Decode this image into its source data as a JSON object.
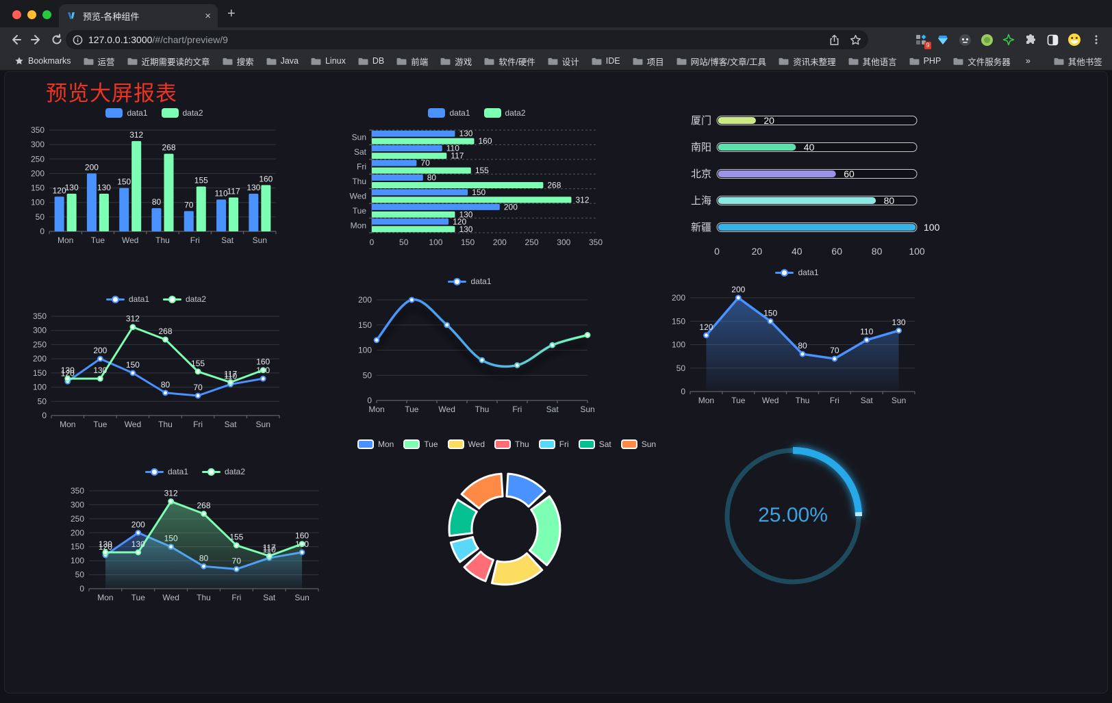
{
  "browser": {
    "tab": {
      "title": "预览-各种组件",
      "close_glyph": "×",
      "new_tab_glyph": "+"
    },
    "url": {
      "host": "127.0.0.1:3000",
      "path": "/#/chart/preview/9"
    },
    "extensions_badge": "9",
    "bookmarks_root": "Bookmarks",
    "bookmarks": [
      "运营",
      "近期需要读的文章",
      "搜索",
      "Java",
      "Linux",
      "DB",
      "前端",
      "游戏",
      "软件/硬件",
      "设计",
      "IDE",
      "项目",
      "网站/博客/文章/工具",
      "资讯未整理",
      "其他语言",
      "PHP",
      "文件服务器"
    ],
    "bookmarks_overflow": "»",
    "other_bookmarks": "其他书签"
  },
  "page": {
    "title": "预览大屏报表",
    "title_color": "#ee3420",
    "background": "#16171e"
  },
  "charts": [
    {
      "name": "grouped-bar-chart",
      "chart_data": {
        "type": "bar",
        "categories": [
          "Mon",
          "Tue",
          "Wed",
          "Thu",
          "Fri",
          "Sat",
          "Sun"
        ],
        "series": [
          {
            "name": "data1",
            "color": "#4992ff",
            "values": [
              120,
              200,
              150,
              80,
              70,
              110,
              130
            ]
          },
          {
            "name": "data2",
            "color": "#7cffb2",
            "values": [
              130,
              130,
              312,
              268,
              155,
              117,
              160
            ]
          }
        ],
        "ylim": [
          0,
          350
        ],
        "ystep": 50,
        "grid": true,
        "legend_position": "top",
        "labels_shown": true
      }
    },
    {
      "name": "horizontal-bar-chart",
      "chart_data": {
        "type": "bar",
        "orientation": "horizontal",
        "categories": [
          "Mon",
          "Tue",
          "Wed",
          "Thu",
          "Fri",
          "Sat",
          "Sun"
        ],
        "category_display_order": "Sun at top, Mon at bottom",
        "series": [
          {
            "name": "data1",
            "color": "#4992ff",
            "values": [
              120,
              200,
              150,
              80,
              70,
              110,
              130
            ]
          },
          {
            "name": "data2",
            "color": "#7cffb2",
            "values": [
              130,
              130,
              312,
              268,
              155,
              117,
              160
            ]
          }
        ],
        "xlim": [
          0,
          350
        ],
        "xstep": 50,
        "legend_position": "top",
        "labels_shown": true
      }
    },
    {
      "name": "capsule-progress-chart",
      "chart_data": {
        "type": "bar",
        "variant": "capsule",
        "categories": [
          "厦门",
          "南阳",
          "北京",
          "上海",
          "新疆"
        ],
        "values": [
          20,
          40,
          60,
          80,
          100
        ],
        "colors": [
          "#cdea84",
          "#5fdfae",
          "#9b93e9",
          "#8de8e1",
          "#38b2e5"
        ],
        "xlim": [
          0,
          100
        ],
        "xticks": [
          0,
          20,
          40,
          60,
          80,
          100
        ],
        "labels_shown": true
      }
    },
    {
      "name": "dual-line-chart",
      "chart_data": {
        "type": "line",
        "categories": [
          "Mon",
          "Tue",
          "Wed",
          "Thu",
          "Fri",
          "Sat",
          "Sun"
        ],
        "series": [
          {
            "name": "data1",
            "color": "#4992ff",
            "values": [
              120,
              200,
              150,
              80,
              70,
              110,
              130
            ]
          },
          {
            "name": "data2",
            "color": "#7cffb2",
            "values": [
              130,
              130,
              312,
              268,
              155,
              117,
              160
            ]
          }
        ],
        "ylim": [
          0,
          350
        ],
        "ystep": 50,
        "legend_position": "top",
        "labels_shown": true
      }
    },
    {
      "name": "gradient-line-chart",
      "chart_data": {
        "type": "line",
        "variant": "smooth-gradient-shadow",
        "categories": [
          "Mon",
          "Tue",
          "Wed",
          "Thu",
          "Fri",
          "Sat",
          "Sun"
        ],
        "series": [
          {
            "name": "data1",
            "color_start": "#4992ff",
            "color_end": "#7cffb2",
            "values": [
              120,
              200,
              150,
              80,
              70,
              110,
              130
            ]
          }
        ],
        "ylim": [
          0,
          200
        ],
        "ystep": 50,
        "legend_position": "top",
        "labels_shown": false
      }
    },
    {
      "name": "area-line-chart",
      "chart_data": {
        "type": "area",
        "categories": [
          "Mon",
          "Tue",
          "Wed",
          "Thu",
          "Fri",
          "Sat",
          "Sun"
        ],
        "series": [
          {
            "name": "data1",
            "color": "#4992ff",
            "values": [
              120,
              200,
              150,
              80,
              70,
              110,
              130
            ]
          }
        ],
        "ylim": [
          0,
          200
        ],
        "ystep": 50,
        "legend_position": "top",
        "labels_shown": true
      }
    },
    {
      "name": "dual-area-chart",
      "chart_data": {
        "type": "area",
        "categories": [
          "Mon",
          "Tue",
          "Wed",
          "Thu",
          "Fri",
          "Sat",
          "Sun"
        ],
        "series": [
          {
            "name": "data1",
            "color": "#4992ff",
            "values": [
              120,
              200,
              150,
              80,
              70,
              110,
              130
            ]
          },
          {
            "name": "data2",
            "color": "#7cffb2",
            "values": [
              130,
              130,
              312,
              268,
              155,
              117,
              160
            ]
          }
        ],
        "ylim": [
          0,
          350
        ],
        "ystep": 50,
        "legend_position": "top",
        "labels_shown": true
      }
    },
    {
      "name": "donut-pie-chart",
      "chart_data": {
        "type": "pie",
        "shape": "donut",
        "legend": [
          "Mon",
          "Tue",
          "Wed",
          "Thu",
          "Fri",
          "Sat",
          "Sun"
        ],
        "values": [
          120,
          200,
          150,
          80,
          70,
          110,
          130
        ],
        "colors": [
          "#4992ff",
          "#7cffb2",
          "#fddd60",
          "#ff6e76",
          "#58d9f9",
          "#05c091",
          "#ff8a45"
        ],
        "legend_position": "top"
      }
    },
    {
      "name": "gauge-chart",
      "chart_data": {
        "type": "gauge",
        "label": "25.00%",
        "percent": 25,
        "color": "#27a9e9",
        "track_color": "#1d4a5c",
        "text_color": "#3da2e0"
      }
    }
  ]
}
